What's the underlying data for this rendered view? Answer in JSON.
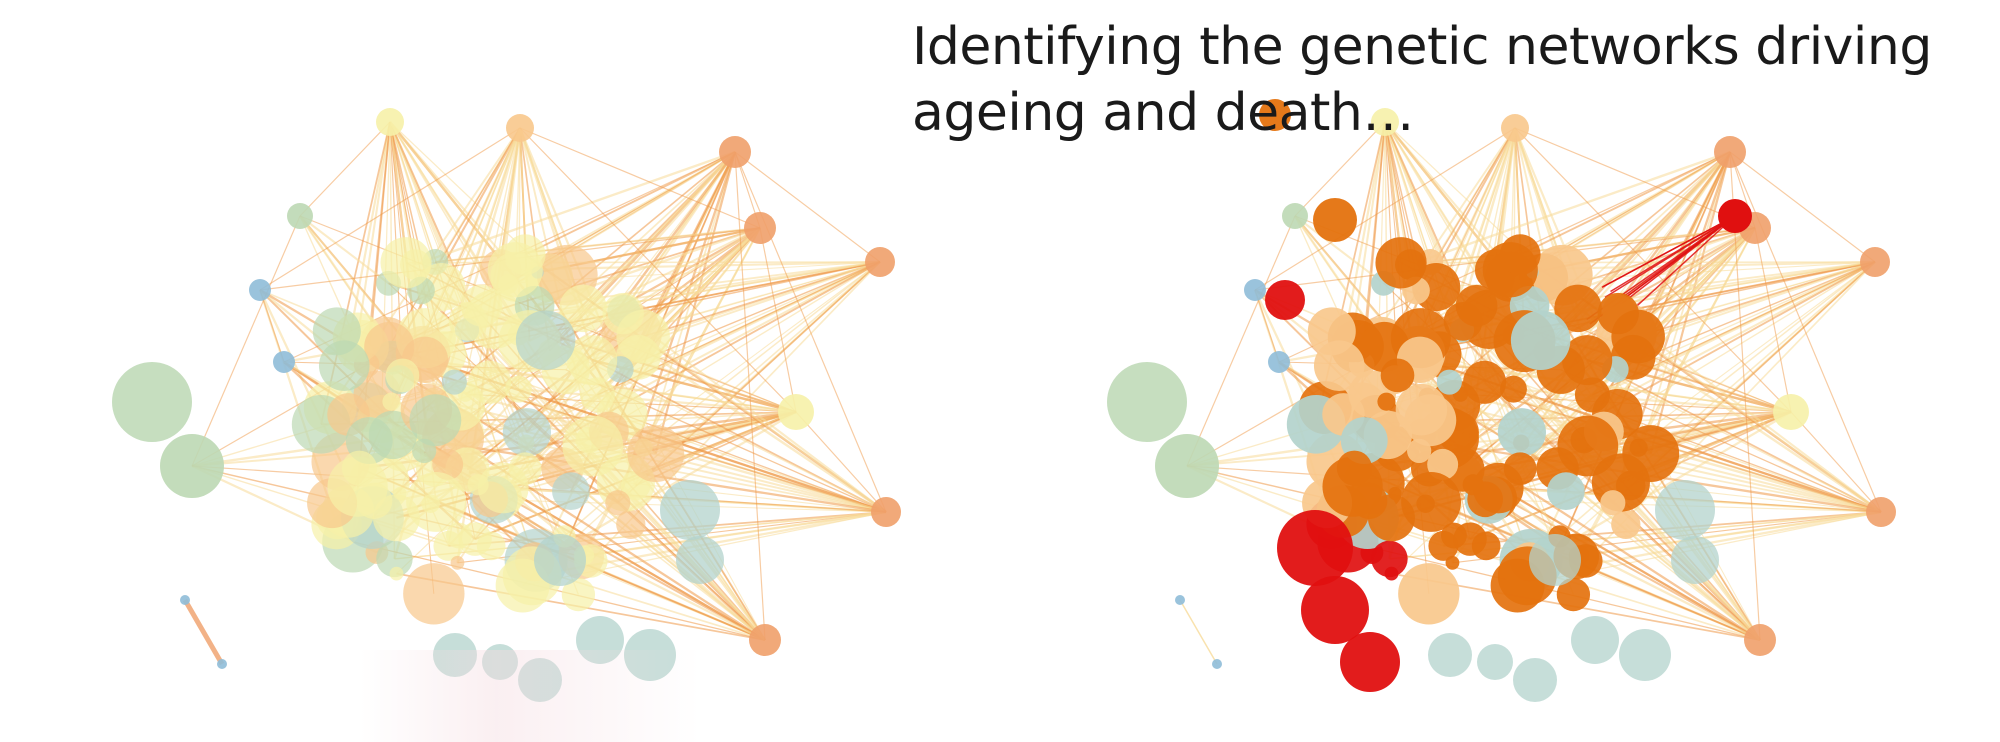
{
  "title": {
    "line1": "Identifying the genetic networks driving",
    "line2": "ageing and death…"
  },
  "colors": {
    "green": "#bcd8b4",
    "teal": "#b3d3cc",
    "blue": "#8fbcd8",
    "pale_yellow": "#f6f1a8",
    "light_orange": "#f8c88c",
    "orange": "#f0a06a",
    "dark_orange": "#e4720e",
    "red": "#e01010",
    "edge_orange": "#f09a4a",
    "edge_yellow": "#f8dc9a"
  },
  "networks": [
    {
      "name": "left-network",
      "mode": "baseline"
    },
    {
      "name": "right-network",
      "mode": "highlighted"
    }
  ]
}
